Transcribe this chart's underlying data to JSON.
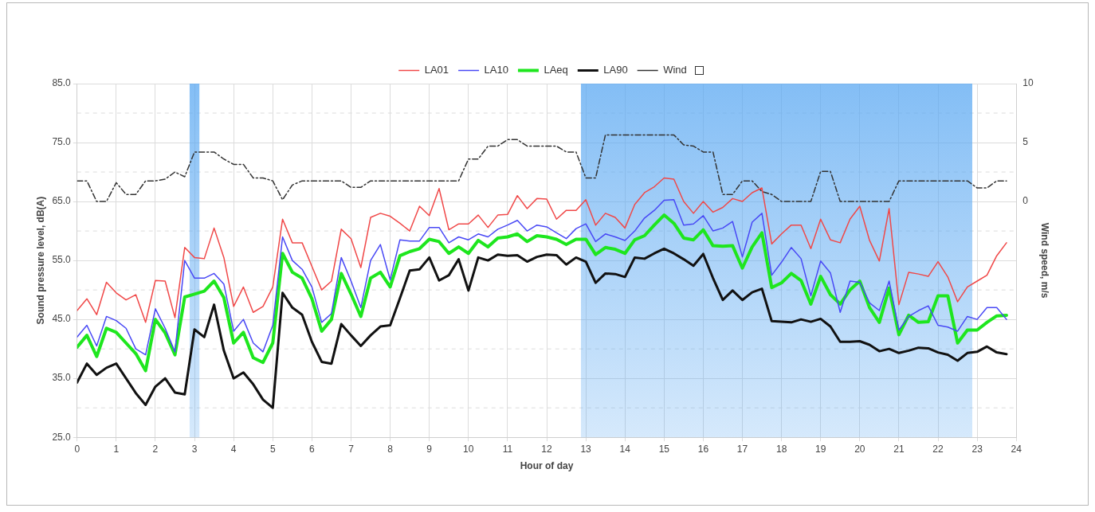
{
  "chart_data": {
    "type": "line",
    "xlabel": "Hour of day",
    "ylabel": "Sound pressure level, dB(A)",
    "y2label": "Wind speed, m/s",
    "x": [
      0,
      0.25,
      0.5,
      0.75,
      1,
      1.25,
      1.5,
      1.75,
      2,
      2.25,
      2.5,
      2.75,
      3,
      3.25,
      3.5,
      3.75,
      4,
      4.25,
      4.5,
      4.75,
      5,
      5.25,
      5.5,
      5.75,
      6,
      6.25,
      6.5,
      6.75,
      7,
      7.25,
      7.5,
      7.75,
      8,
      8.25,
      8.5,
      8.75,
      9,
      9.25,
      9.5,
      9.75,
      10,
      10.25,
      10.5,
      10.75,
      11,
      11.25,
      11.5,
      11.75,
      12,
      12.25,
      12.5,
      12.75,
      13,
      13.25,
      13.5,
      13.75,
      14,
      14.25,
      14.5,
      14.75,
      15,
      15.25,
      15.5,
      15.75,
      16,
      16.25,
      16.5,
      16.75,
      17,
      17.25,
      17.5,
      17.75,
      18,
      18.25,
      18.5,
      18.75,
      19,
      19.25,
      19.5,
      19.75,
      20,
      20.25,
      20.5,
      20.75,
      21,
      21.25,
      21.5,
      21.75,
      22,
      22.25,
      22.5,
      22.75,
      23,
      23.25,
      23.5,
      23.75
    ],
    "xlim": [
      0,
      24
    ],
    "xticks": [
      0,
      1,
      2,
      3,
      4,
      5,
      6,
      7,
      8,
      9,
      10,
      11,
      12,
      13,
      14,
      15,
      16,
      17,
      18,
      19,
      20,
      21,
      22,
      23,
      24
    ],
    "ylim": [
      25,
      85
    ],
    "yticks": [
      {
        "value": 25,
        "label": "25.0"
      },
      {
        "value": 30,
        "label": null
      },
      {
        "value": 35,
        "label": "35.0"
      },
      {
        "value": 40,
        "label": null
      },
      {
        "value": 45,
        "label": "45.0"
      },
      {
        "value": 50,
        "label": null
      },
      {
        "value": 55,
        "label": "55.0"
      },
      {
        "value": 60,
        "label": null
      },
      {
        "value": 65,
        "label": "65.0"
      },
      {
        "value": 70,
        "label": null
      },
      {
        "value": 75,
        "label": "75.0"
      },
      {
        "value": 80,
        "label": null
      },
      {
        "value": 85,
        "label": "85.0"
      }
    ],
    "y2lim": [
      -20,
      10
    ],
    "y2ticks": [
      0,
      5,
      10
    ],
    "grid": true,
    "legend": "top",
    "marker": "none",
    "bands": [
      {
        "axis": "x",
        "from": 2.875,
        "to": 3.125,
        "color": "#5aa8f2"
      },
      {
        "axis": "x",
        "from": 12.875,
        "to": 22.875,
        "color": "#5aa8f2"
      }
    ],
    "series": [
      {
        "name": "LA01",
        "color": "#f04848",
        "values": [
          46.5,
          48.5,
          45.8,
          51.3,
          49.5,
          48.3,
          49.2,
          44.5,
          51.6,
          51.5,
          45.3,
          57.2,
          55.5,
          55.3,
          60.5,
          55.5,
          47.2,
          50.5,
          46.2,
          47.2,
          50.5,
          62,
          58,
          58,
          54,
          50,
          51.5,
          60.3,
          58.7,
          53.8,
          62.3,
          63,
          62.5,
          61.3,
          60,
          64.2,
          62.6,
          67.2,
          60.2,
          61.2,
          61.2,
          62.7,
          60.6,
          62.7,
          62.8,
          66,
          63.8,
          65.5,
          65.4,
          62,
          63.5,
          63.5,
          65.3,
          61,
          63,
          62.3,
          60.5,
          64.5,
          66.5,
          67.5,
          69,
          68.8,
          65,
          63,
          65,
          63.2,
          64,
          65.5,
          65,
          66.5,
          67.3,
          57.8,
          59.5,
          61,
          61,
          57,
          62,
          58.5,
          58,
          62,
          64.2,
          58.4,
          54.9,
          63.8,
          47.5,
          53,
          52.7,
          52.3,
          54.8,
          52.2,
          48,
          50.5,
          51.5,
          52.5,
          55.8,
          58
        ]
      },
      {
        "name": "LA10",
        "color": "#4848f5",
        "values": [
          42,
          44,
          40.5,
          45.5,
          44.8,
          43.5,
          40,
          39,
          46.8,
          43.5,
          39.5,
          55,
          52,
          52,
          52.8,
          51,
          43,
          45,
          41,
          39.5,
          44,
          59,
          55,
          53.5,
          50.5,
          44.5,
          46,
          55.5,
          51.5,
          47,
          55,
          57.7,
          51.7,
          58.5,
          58.3,
          58.3,
          60.6,
          60.6,
          58,
          59,
          58.5,
          59.5,
          59,
          60.3,
          61,
          61.8,
          60,
          61,
          60.7,
          59.7,
          58.7,
          60.4,
          61.2,
          58.2,
          59.5,
          59,
          58.4,
          60,
          62.2,
          63.5,
          65.2,
          65.3,
          61,
          61.2,
          62.6,
          60,
          60.5,
          61.6,
          55.6,
          61.5,
          63,
          52.5,
          54.7,
          57.2,
          55.3,
          49,
          54.9,
          52.9,
          46.2,
          51.5,
          51.3,
          47.8,
          46.5,
          51.5,
          43.2,
          45.5,
          46.5,
          47.3,
          44,
          43.7,
          43,
          45.5,
          45,
          47,
          47,
          45
        ]
      },
      {
        "name": "LAeq",
        "color": "#1ee61e",
        "values": [
          40.3,
          42.3,
          38.7,
          43.5,
          42.8,
          41,
          39.2,
          36.3,
          45,
          42.7,
          39,
          48.8,
          49.3,
          49.8,
          51.5,
          48.7,
          41,
          42.8,
          38.5,
          37.7,
          41,
          56.2,
          53,
          52,
          48.5,
          43,
          45,
          52.8,
          49.3,
          45.5,
          52,
          53,
          50.5,
          55.8,
          56.5,
          57,
          58.6,
          58.2,
          56.2,
          57.3,
          56.2,
          58.4,
          57.3,
          58.8,
          59,
          59.5,
          58.2,
          59.2,
          59,
          58.6,
          57.7,
          58.6,
          58.6,
          56,
          57.2,
          56.9,
          56.2,
          58.5,
          59.2,
          61,
          62.7,
          61.3,
          58.8,
          58.5,
          60.2,
          57.5,
          57.4,
          57.5,
          53.7,
          57.3,
          59.7,
          50.4,
          51.2,
          52.8,
          51.6,
          47.6,
          52.3,
          49.2,
          47.6,
          50,
          51.5,
          47,
          44.5,
          50.3,
          42.4,
          45.7,
          44.5,
          44.6,
          49,
          49,
          41,
          43.2,
          43.2,
          44.5,
          45.6,
          45.7
        ]
      },
      {
        "name": "LA90",
        "color": "#111111",
        "values": [
          34.3,
          37.5,
          35.6,
          36.8,
          37.5,
          35,
          32.5,
          30.5,
          33.6,
          35,
          32.6,
          32.3,
          43.3,
          42,
          47.5,
          39.7,
          35,
          36,
          34,
          31.4,
          30,
          49.5,
          47,
          45.8,
          41.2,
          37.8,
          37.5,
          44.2,
          42.3,
          40.5,
          42.3,
          43.8,
          44,
          48.6,
          53.3,
          53.5,
          55.5,
          51.6,
          52.5,
          55.2,
          49.9,
          55.5,
          55,
          56,
          55.8,
          55.9,
          54.8,
          55.6,
          56,
          55.9,
          54.3,
          55.5,
          54.8,
          51.2,
          52.8,
          52.7,
          52.2,
          55.5,
          55.3,
          56.2,
          57,
          56.2,
          55.2,
          54.1,
          56.1,
          52,
          48.3,
          49.9,
          48.3,
          49.6,
          50.2,
          44.7,
          44.6,
          44.5,
          45,
          44.6,
          45.1,
          43.8,
          41.2,
          41.2,
          41.3,
          40.7,
          39.6,
          40,
          39.3,
          39.7,
          40.2,
          40.1,
          39.4,
          39,
          38,
          39.3,
          39.5,
          40.4,
          39.4,
          39.1
        ]
      },
      {
        "name": "Wind",
        "color": "#333333",
        "axis": "y2",
        "line_style": "dashed",
        "values": [
          1.75,
          1.75,
          0,
          0,
          1.6,
          0.6,
          0.6,
          1.75,
          1.75,
          1.9,
          2.5,
          2.1,
          4.2,
          4.2,
          4.2,
          3.6,
          3.15,
          3.15,
          2,
          2,
          1.75,
          0.15,
          1.4,
          1.75,
          1.75,
          1.75,
          1.75,
          1.75,
          1.2,
          1.2,
          1.75,
          1.75,
          1.75,
          1.75,
          1.75,
          1.75,
          1.75,
          1.75,
          1.75,
          1.75,
          3.6,
          3.6,
          4.7,
          4.7,
          5.25,
          5.25,
          4.7,
          4.7,
          4.7,
          4.7,
          4.2,
          4.2,
          2,
          2,
          5.65,
          5.65,
          5.65,
          5.65,
          5.65,
          5.65,
          5.65,
          5.65,
          4.8,
          4.7,
          4.2,
          4.2,
          0.6,
          0.6,
          1.75,
          1.75,
          0.85,
          0.6,
          0,
          0,
          0,
          0,
          2.55,
          2.55,
          0,
          0,
          0,
          0,
          0,
          0,
          1.75,
          1.75,
          1.75,
          1.75,
          1.75,
          1.75,
          1.75,
          1.75,
          1.15,
          1.15,
          1.75,
          1.75
        ]
      }
    ]
  }
}
